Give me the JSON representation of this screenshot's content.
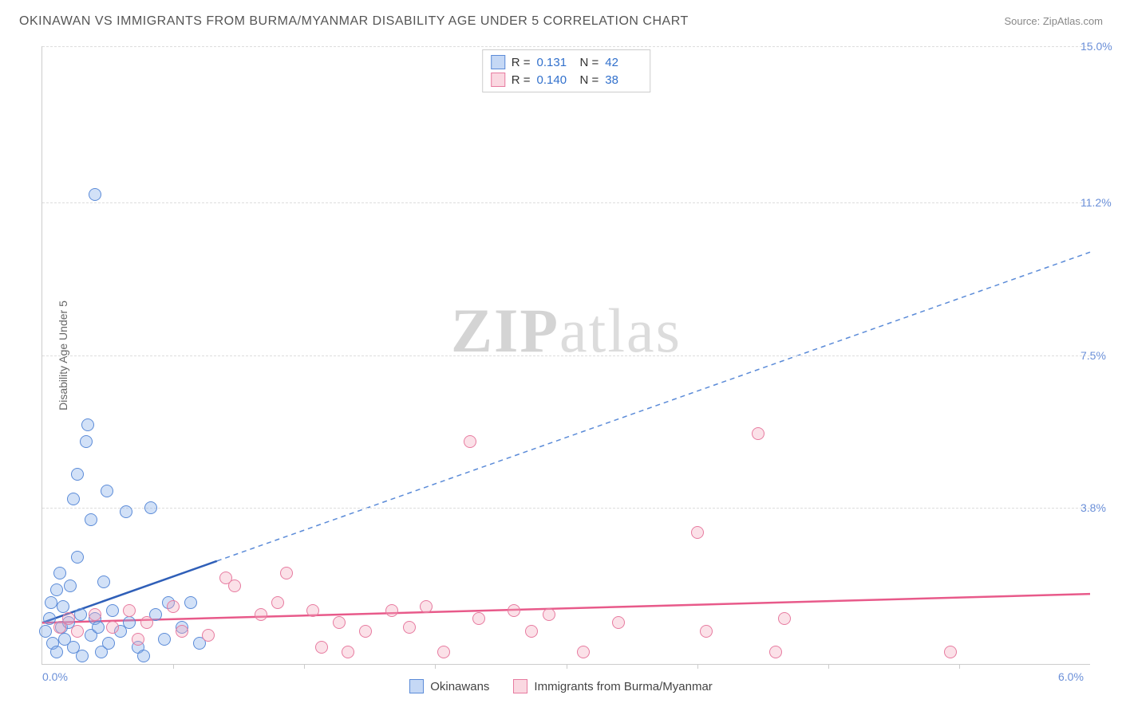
{
  "title": "OKINAWAN VS IMMIGRANTS FROM BURMA/MYANMAR DISABILITY AGE UNDER 5 CORRELATION CHART",
  "source": "Source: ZipAtlas.com",
  "y_axis_label": "Disability Age Under 5",
  "watermark": {
    "bold": "ZIP",
    "light": "atlas"
  },
  "chart": {
    "type": "scatter",
    "xlim": [
      0.0,
      6.0
    ],
    "ylim": [
      0.0,
      15.0
    ],
    "x_ticks": [
      0.0,
      6.0
    ],
    "x_tick_labels": [
      "0.0%",
      "6.0%"
    ],
    "x_minor_ticks": [
      0.75,
      1.5,
      2.25,
      3.0,
      3.75,
      4.5,
      5.25
    ],
    "y_ticks": [
      3.8,
      7.5,
      11.2,
      15.0
    ],
    "y_tick_labels": [
      "3.8%",
      "7.5%",
      "11.2%",
      "15.0%"
    ],
    "grid_color": "#dddddd",
    "background_color": "#ffffff",
    "axis_color": "#cccccc",
    "marker_radius": 8,
    "marker_stroke_width": 1.5,
    "marker_fill_opacity": 0.35,
    "tick_label_color": "#6a8fd8"
  },
  "series": [
    {
      "key": "okinawans",
      "label": "Okinawans",
      "color_fill": "#7fa8e8",
      "color_stroke": "#5b8bd8",
      "R": "0.131",
      "N": "42",
      "trend": {
        "solid": {
          "x1": 0.0,
          "y1": 1.0,
          "x2": 1.0,
          "y2": 2.5,
          "color": "#2f5fb8",
          "width": 2.5,
          "dash": "none"
        },
        "dashed": {
          "x1": 1.0,
          "y1": 2.5,
          "x2": 6.0,
          "y2": 10.0,
          "color": "#5b8bd8",
          "width": 1.5,
          "dash": "6,5"
        }
      },
      "points": [
        [
          0.02,
          0.8
        ],
        [
          0.04,
          1.1
        ],
        [
          0.05,
          1.5
        ],
        [
          0.06,
          0.5
        ],
        [
          0.08,
          1.8
        ],
        [
          0.08,
          0.3
        ],
        [
          0.1,
          2.2
        ],
        [
          0.11,
          0.9
        ],
        [
          0.12,
          1.4
        ],
        [
          0.13,
          0.6
        ],
        [
          0.15,
          1.0
        ],
        [
          0.16,
          1.9
        ],
        [
          0.18,
          4.0
        ],
        [
          0.18,
          0.4
        ],
        [
          0.2,
          2.6
        ],
        [
          0.2,
          4.6
        ],
        [
          0.22,
          1.2
        ],
        [
          0.23,
          0.2
        ],
        [
          0.25,
          5.4
        ],
        [
          0.26,
          5.8
        ],
        [
          0.28,
          0.7
        ],
        [
          0.28,
          3.5
        ],
        [
          0.3,
          1.1
        ],
        [
          0.3,
          11.4
        ],
        [
          0.32,
          0.9
        ],
        [
          0.34,
          0.3
        ],
        [
          0.35,
          2.0
        ],
        [
          0.37,
          4.2
        ],
        [
          0.38,
          0.5
        ],
        [
          0.4,
          1.3
        ],
        [
          0.45,
          0.8
        ],
        [
          0.48,
          3.7
        ],
        [
          0.5,
          1.0
        ],
        [
          0.55,
          0.4
        ],
        [
          0.58,
          0.2
        ],
        [
          0.62,
          3.8
        ],
        [
          0.65,
          1.2
        ],
        [
          0.7,
          0.6
        ],
        [
          0.72,
          1.5
        ],
        [
          0.8,
          0.9
        ],
        [
          0.85,
          1.5
        ],
        [
          0.9,
          0.5
        ]
      ]
    },
    {
      "key": "burma",
      "label": "Immigrants from Burma/Myanmar",
      "color_fill": "#f4a8bd",
      "color_stroke": "#e77ba0",
      "R": "0.140",
      "N": "38",
      "trend": {
        "solid": {
          "x1": 0.0,
          "y1": 1.0,
          "x2": 6.0,
          "y2": 1.7,
          "color": "#e85a8a",
          "width": 2.5,
          "dash": "none"
        }
      },
      "points": [
        [
          0.1,
          0.9
        ],
        [
          0.15,
          1.1
        ],
        [
          0.2,
          0.8
        ],
        [
          0.3,
          1.2
        ],
        [
          0.4,
          0.9
        ],
        [
          0.5,
          1.3
        ],
        [
          0.55,
          0.6
        ],
        [
          0.6,
          1.0
        ],
        [
          0.75,
          1.4
        ],
        [
          0.8,
          0.8
        ],
        [
          0.95,
          0.7
        ],
        [
          1.05,
          2.1
        ],
        [
          1.1,
          1.9
        ],
        [
          1.25,
          1.2
        ],
        [
          1.35,
          1.5
        ],
        [
          1.4,
          2.2
        ],
        [
          1.55,
          1.3
        ],
        [
          1.6,
          0.4
        ],
        [
          1.7,
          1.0
        ],
        [
          1.75,
          0.3
        ],
        [
          1.85,
          0.8
        ],
        [
          2.0,
          1.3
        ],
        [
          2.1,
          0.9
        ],
        [
          2.2,
          1.4
        ],
        [
          2.3,
          0.3
        ],
        [
          2.45,
          5.4
        ],
        [
          2.5,
          1.1
        ],
        [
          2.7,
          1.3
        ],
        [
          2.8,
          0.8
        ],
        [
          2.9,
          1.2
        ],
        [
          3.1,
          0.3
        ],
        [
          3.3,
          1.0
        ],
        [
          3.75,
          3.2
        ],
        [
          3.8,
          0.8
        ],
        [
          4.1,
          5.6
        ],
        [
          4.2,
          0.3
        ],
        [
          4.25,
          1.1
        ],
        [
          5.2,
          0.3
        ]
      ]
    }
  ],
  "stats_box_labels": {
    "R": "R =",
    "N": "N ="
  },
  "legend": {
    "swatch_border_width": 1
  }
}
